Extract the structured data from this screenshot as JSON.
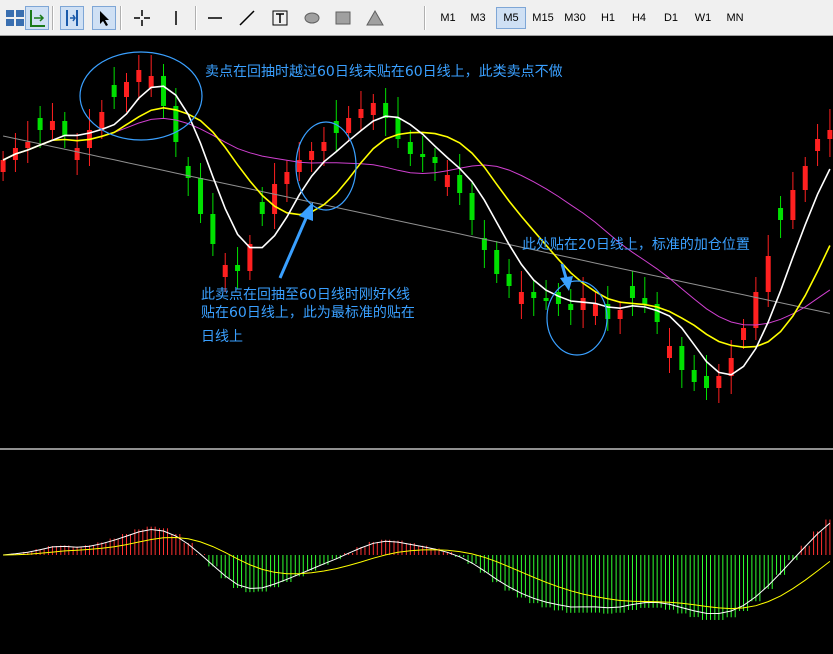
{
  "toolbar": {
    "tools": [
      {
        "name": "tile-windows-icon"
      },
      {
        "name": "period-separators-icon"
      },
      {
        "name": "grid-icon"
      },
      {
        "name": "cursor-icon"
      },
      {
        "name": "crosshair-icon"
      },
      {
        "name": "vertical-line-icon"
      },
      {
        "name": "horizontal-line-icon"
      },
      {
        "name": "trendline-icon"
      },
      {
        "name": "text-label-icon"
      },
      {
        "name": "ellipse-icon"
      },
      {
        "name": "rectangle-icon"
      },
      {
        "name": "triangle-icon"
      }
    ],
    "timeframes": [
      "M1",
      "M3",
      "M5",
      "M15",
      "M30",
      "H1",
      "H4",
      "D1",
      "W1",
      "MN"
    ],
    "active_timeframe": "M5"
  },
  "annotations": {
    "top": "卖点在回抽时越过60日线未贴在60日线上，此类卖点不做",
    "middle_line1": "此卖点在回抽至60日线时刚好K线",
    "middle_line2": "贴在60日线上，此为最标准的贴在",
    "middle_line3": "日线上",
    "right": "此处贴在20日线上，标准的加仓位置"
  },
  "colors": {
    "background": "#000000",
    "bull_candle": "#ff2020",
    "bear_candle": "#00e000",
    "ma_fast": "#ffffff",
    "ma_mid": "#ffff00",
    "ma_slow": "#d040d0",
    "ma_long": "#909090",
    "annotation": "#3aa0ff",
    "macd_pos": "#ff3030",
    "macd_neg": "#30ff30"
  },
  "chart_data": {
    "type": "candlestick",
    "closes": [
      132,
      136,
      138,
      142,
      145,
      140,
      136,
      142,
      148,
      153,
      158,
      162,
      160,
      150,
      138,
      126,
      114,
      104,
      97,
      95,
      104,
      114,
      124,
      128,
      132,
      135,
      138,
      141,
      146,
      149,
      151,
      146,
      139,
      134,
      133,
      131,
      127,
      121,
      112,
      102,
      94,
      90,
      88,
      86,
      85,
      84,
      82,
      86,
      84,
      79,
      82,
      86,
      84,
      78,
      70,
      62,
      58,
      56,
      60,
      66,
      76,
      88,
      100,
      112,
      122,
      130,
      139,
      142
    ],
    "ma_fast_period": 5,
    "ma_mid_period": 10,
    "ma_slow_period": 20,
    "ma_long_period": 60,
    "indicator": "MACD"
  }
}
